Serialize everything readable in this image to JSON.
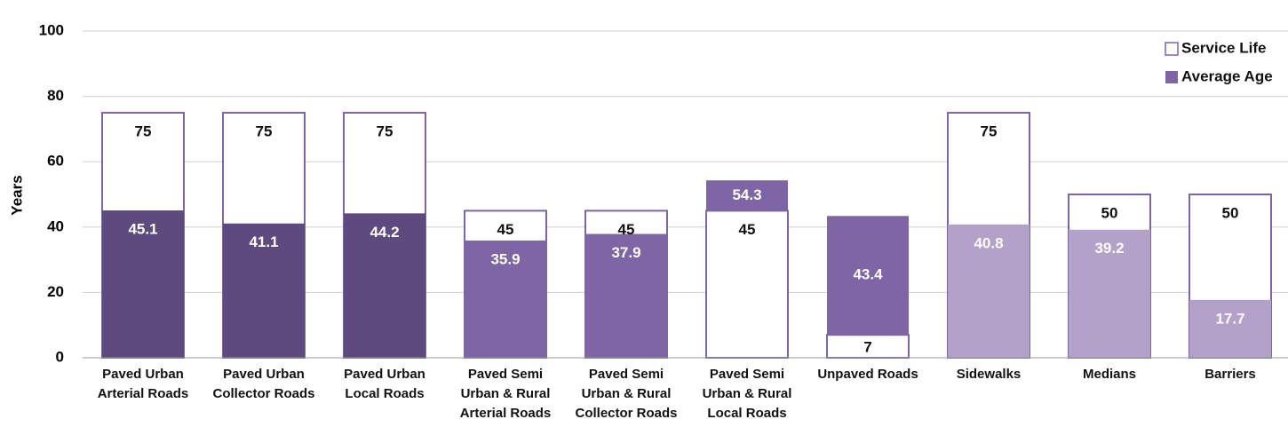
{
  "chart_data": {
    "type": "overlap_bar",
    "ylabel": "Years",
    "categories": [
      "Paved Urban\nArterial Roads",
      "Paved Urban\nCollector Roads",
      "Paved Urban\nLocal Roads",
      "Paved Semi\nUrban & Rural\nArterial Roads",
      "Paved Semi\nUrban & Rural\nCollector Roads",
      "Paved Semi\nUrban & Rural\nLocal Roads",
      "Unpaved Roads",
      "Sidewalks",
      "Medians",
      "Barriers"
    ],
    "series": [
      {
        "name": "Service Life",
        "color": "#ffffff",
        "edge_color": "#7f64a6",
        "values": [
          75,
          75,
          75,
          45,
          45,
          45,
          7,
          75,
          50,
          50
        ]
      },
      {
        "name": "Average Age",
        "color": "#7f64a6",
        "colors": [
          "#5e4a7e",
          "#5e4a7e",
          "#5e4a7e",
          "#7f64a6",
          "#7f64a6",
          "#7f64a6",
          "#7f64a6",
          "#b3a1c9",
          "#b3a1c9",
          "#b3a1c9"
        ],
        "values": [
          45.1,
          41.1,
          44.2,
          35.9,
          37.9,
          54.3,
          43.4,
          40.8,
          39.2,
          17.7
        ]
      }
    ],
    "ylim": [
      0,
      100
    ],
    "yticks": [
      0,
      20,
      40,
      60,
      80,
      100
    ],
    "grid": true,
    "legend": "upper right"
  }
}
